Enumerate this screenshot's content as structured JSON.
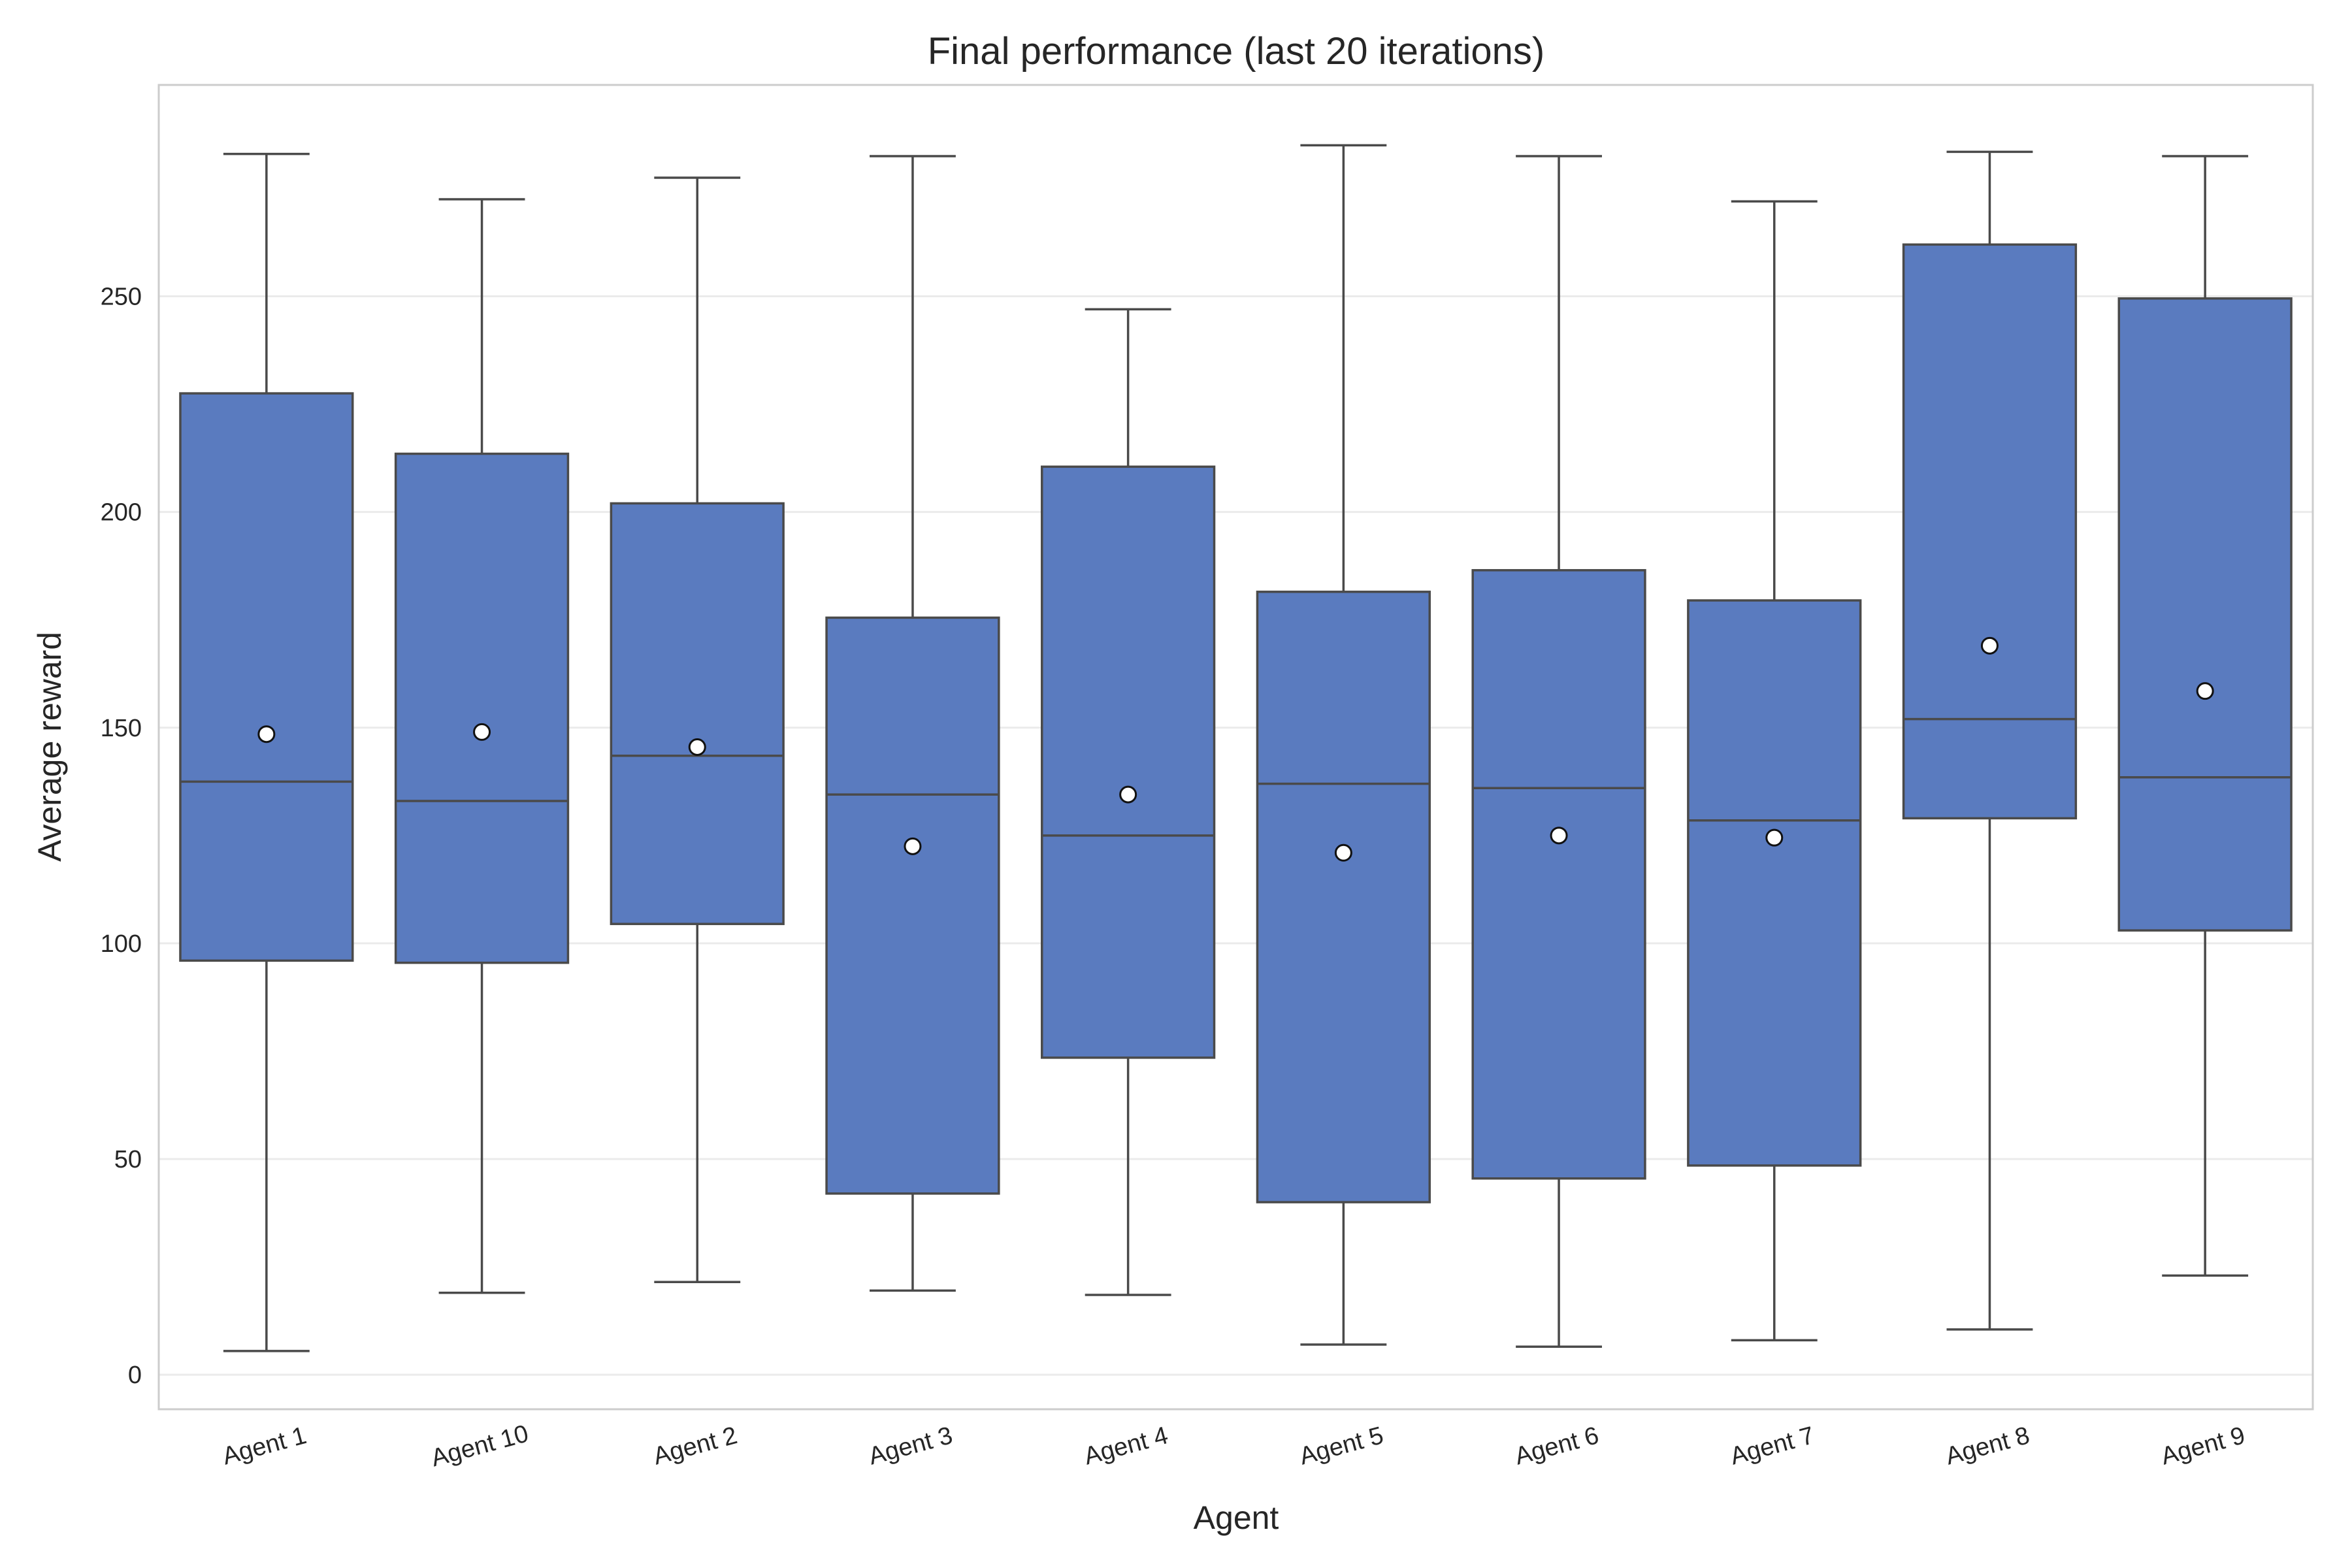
{
  "chart_data": {
    "type": "box",
    "title": "Final performance (last 20 iterations)",
    "xlabel": "Agent",
    "ylabel": "Average reward",
    "ylim": [
      -8,
      299
    ],
    "yticks": [
      0,
      50,
      100,
      150,
      200,
      250
    ],
    "grid": "horizontal",
    "box_color": "#5a7bbf",
    "line_color": "#4a4a4a",
    "mean_marker_color": "#ffffff",
    "categories": [
      "Agent 1",
      "Agent 10",
      "Agent 2",
      "Agent 3",
      "Agent 4",
      "Agent 5",
      "Agent 6",
      "Agent 7",
      "Agent 8",
      "Agent 9"
    ],
    "boxes": [
      {
        "category": "Agent 1",
        "whisker_low": 5.5,
        "q1": 96,
        "median": 137.5,
        "q3": 227.5,
        "whisker_high": 283,
        "mean": 148.5
      },
      {
        "category": "Agent 10",
        "whisker_low": 19,
        "q1": 95.5,
        "median": 133,
        "q3": 213.5,
        "whisker_high": 272.5,
        "mean": 149
      },
      {
        "category": "Agent 2",
        "whisker_low": 21.5,
        "q1": 104.5,
        "median": 143.5,
        "q3": 202,
        "whisker_high": 277.5,
        "mean": 145.5
      },
      {
        "category": "Agent 3",
        "whisker_low": 19.5,
        "q1": 42,
        "median": 134.5,
        "q3": 175.5,
        "whisker_high": 282.5,
        "mean": 122.5
      },
      {
        "category": "Agent 4",
        "whisker_low": 18.5,
        "q1": 73.5,
        "median": 125,
        "q3": 210.5,
        "whisker_high": 247,
        "mean": 134.5
      },
      {
        "category": "Agent 5",
        "whisker_low": 7,
        "q1": 40,
        "median": 137,
        "q3": 181.5,
        "whisker_high": 285,
        "mean": 121
      },
      {
        "category": "Agent 6",
        "whisker_low": 6.5,
        "q1": 45.5,
        "median": 136,
        "q3": 186.5,
        "whisker_high": 282.5,
        "mean": 125
      },
      {
        "category": "Agent 7",
        "whisker_low": 8,
        "q1": 48.5,
        "median": 128.5,
        "q3": 179.5,
        "whisker_high": 272,
        "mean": 124.5
      },
      {
        "category": "Agent 8",
        "whisker_low": 10.5,
        "q1": 129,
        "median": 152,
        "q3": 262,
        "whisker_high": 283.5,
        "mean": 169
      },
      {
        "category": "Agent 9",
        "whisker_low": 23,
        "q1": 103,
        "median": 138.5,
        "q3": 249.5,
        "whisker_high": 282.5,
        "mean": 158.5
      }
    ]
  }
}
